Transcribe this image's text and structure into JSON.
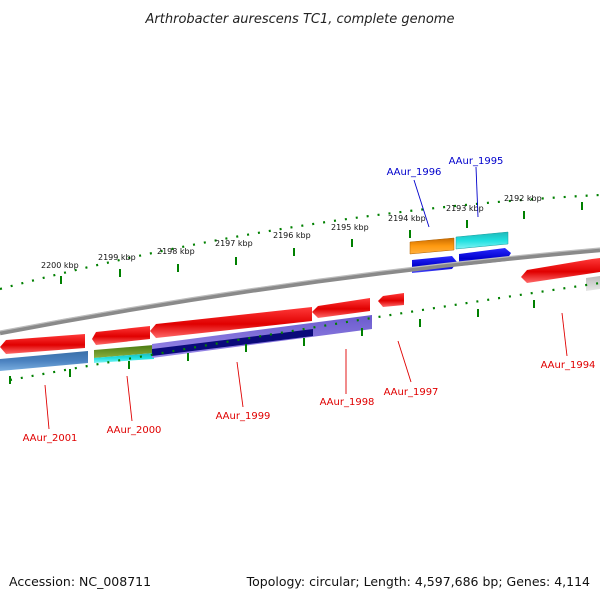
{
  "title": "Arthrobacter aurescens TC1, complete genome",
  "footer": {
    "accession": "Accession: NC_008711",
    "summary": "Topology: circular; Length: 4,597,686 bp; Genes: 4,114"
  },
  "scale_ticks": [
    "2200 kbp",
    "2199 kbp",
    "2198 kbp",
    "2197 kbp",
    "2196 kbp",
    "2195 kbp",
    "2194 kbp",
    "2193 kbp",
    "2192 kbp"
  ],
  "genes": [
    {
      "id": "AAur_1994",
      "color": "#e00000"
    },
    {
      "id": "AAur_1995",
      "color": "#0000cc"
    },
    {
      "id": "AAur_1996",
      "color": "#0000cc"
    },
    {
      "id": "AAur_1997",
      "color": "#e00000"
    },
    {
      "id": "AAur_1998",
      "color": "#e00000"
    },
    {
      "id": "AAur_1999",
      "color": "#e00000"
    },
    {
      "id": "AAur_2000",
      "color": "#e00000"
    },
    {
      "id": "AAur_2001",
      "color": "#e00000"
    }
  ],
  "colors": {
    "backbone": "#888888",
    "scale": "#008000",
    "gene_forward": "#e00000",
    "gene_reverse": "#0000dd"
  }
}
